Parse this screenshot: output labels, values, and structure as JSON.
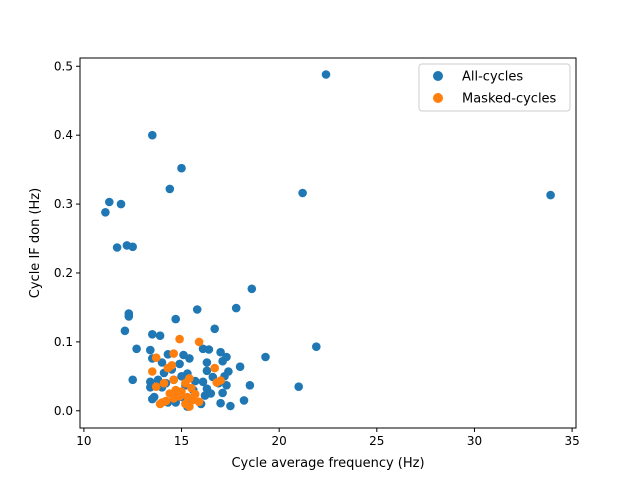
{
  "chart_data": {
    "type": "scatter",
    "title": "",
    "xlabel": "Cycle average frequency (Hz)",
    "ylabel": "Cycle IF don (Hz)",
    "xlim": [
      9.8,
      35.2
    ],
    "ylim": [
      -0.025,
      0.512
    ],
    "xticks": [
      10,
      15,
      20,
      25,
      30,
      35
    ],
    "yticks": [
      0.0,
      0.1,
      0.2,
      0.3,
      0.4,
      0.5
    ],
    "xtick_labels": [
      "10",
      "15",
      "20",
      "25",
      "30",
      "35"
    ],
    "ytick_labels": [
      "0.0",
      "0.1",
      "0.2",
      "0.3",
      "0.4",
      "0.5"
    ],
    "grid": false,
    "legend": "top-right",
    "series": [
      {
        "name": "All-cycles",
        "color": "#1f77b4",
        "points": [
          [
            22.4,
            0.488
          ],
          [
            13.5,
            0.4
          ],
          [
            15.0,
            0.352
          ],
          [
            14.4,
            0.322
          ],
          [
            21.2,
            0.316
          ],
          [
            33.9,
            0.313
          ],
          [
            11.3,
            0.303
          ],
          [
            11.9,
            0.3
          ],
          [
            11.1,
            0.288
          ],
          [
            12.2,
            0.24
          ],
          [
            12.5,
            0.238
          ],
          [
            11.7,
            0.237
          ],
          [
            18.6,
            0.177
          ],
          [
            17.8,
            0.149
          ],
          [
            15.8,
            0.147
          ],
          [
            12.3,
            0.141
          ],
          [
            12.3,
            0.137
          ],
          [
            14.7,
            0.133
          ],
          [
            16.7,
            0.119
          ],
          [
            12.1,
            0.116
          ],
          [
            13.5,
            0.111
          ],
          [
            13.9,
            0.109
          ],
          [
            21.9,
            0.093
          ],
          [
            12.7,
            0.09
          ],
          [
            16.1,
            0.09
          ],
          [
            16.4,
            0.089
          ],
          [
            13.4,
            0.088
          ],
          [
            17.0,
            0.085
          ],
          [
            14.3,
            0.082
          ],
          [
            15.1,
            0.081
          ],
          [
            19.3,
            0.078
          ],
          [
            17.3,
            0.078
          ],
          [
            15.4,
            0.076
          ],
          [
            13.5,
            0.076
          ],
          [
            17.1,
            0.072
          ],
          [
            14.0,
            0.07
          ],
          [
            14.9,
            0.068
          ],
          [
            16.3,
            0.07
          ],
          [
            18.0,
            0.064
          ],
          [
            14.5,
            0.06
          ],
          [
            16.3,
            0.058
          ],
          [
            17.4,
            0.057
          ],
          [
            14.1,
            0.055
          ],
          [
            15.3,
            0.054
          ],
          [
            15.0,
            0.05
          ],
          [
            16.6,
            0.049
          ],
          [
            17.2,
            0.05
          ],
          [
            13.8,
            0.045
          ],
          [
            12.5,
            0.045
          ],
          [
            14.6,
            0.045
          ],
          [
            15.7,
            0.043
          ],
          [
            16.1,
            0.042
          ],
          [
            13.4,
            0.042
          ],
          [
            14.2,
            0.04
          ],
          [
            16.9,
            0.04
          ],
          [
            18.5,
            0.037
          ],
          [
            17.3,
            0.037
          ],
          [
            15.2,
            0.037
          ],
          [
            21.0,
            0.035
          ],
          [
            13.4,
            0.034
          ],
          [
            14.0,
            0.034
          ],
          [
            16.3,
            0.032
          ],
          [
            15.6,
            0.03
          ],
          [
            14.8,
            0.028
          ],
          [
            17.1,
            0.026
          ],
          [
            16.5,
            0.025
          ],
          [
            13.6,
            0.02
          ],
          [
            15.0,
            0.02
          ],
          [
            16.2,
            0.022
          ],
          [
            13.5,
            0.017
          ],
          [
            15.5,
            0.015
          ],
          [
            18.2,
            0.015
          ],
          [
            14.7,
            0.012
          ],
          [
            17.0,
            0.011
          ],
          [
            16.0,
            0.01
          ],
          [
            17.5,
            0.007
          ],
          [
            15.3,
            0.006
          ],
          [
            14.3,
            0.012
          ]
        ]
      },
      {
        "name": "Masked-cycles",
        "color": "#ff7f0e",
        "points": [
          [
            14.9,
            0.104
          ],
          [
            15.9,
            0.1
          ],
          [
            14.6,
            0.083
          ],
          [
            13.7,
            0.077
          ],
          [
            14.5,
            0.066
          ],
          [
            14.3,
            0.062
          ],
          [
            16.7,
            0.062
          ],
          [
            13.5,
            0.057
          ],
          [
            15.4,
            0.047
          ],
          [
            14.6,
            0.045
          ],
          [
            17.0,
            0.044
          ],
          [
            16.8,
            0.041
          ],
          [
            14.1,
            0.04
          ],
          [
            15.2,
            0.04
          ],
          [
            13.7,
            0.035
          ],
          [
            15.5,
            0.033
          ],
          [
            14.7,
            0.03
          ],
          [
            15.0,
            0.028
          ],
          [
            14.4,
            0.025
          ],
          [
            15.7,
            0.024
          ],
          [
            14.9,
            0.021
          ],
          [
            15.3,
            0.02
          ],
          [
            14.6,
            0.018
          ],
          [
            15.6,
            0.016
          ],
          [
            14.2,
            0.014
          ],
          [
            15.9,
            0.013
          ],
          [
            14.0,
            0.012
          ],
          [
            15.2,
            0.01
          ],
          [
            13.9,
            0.01
          ],
          [
            15.4,
            0.006
          ]
        ]
      }
    ]
  }
}
